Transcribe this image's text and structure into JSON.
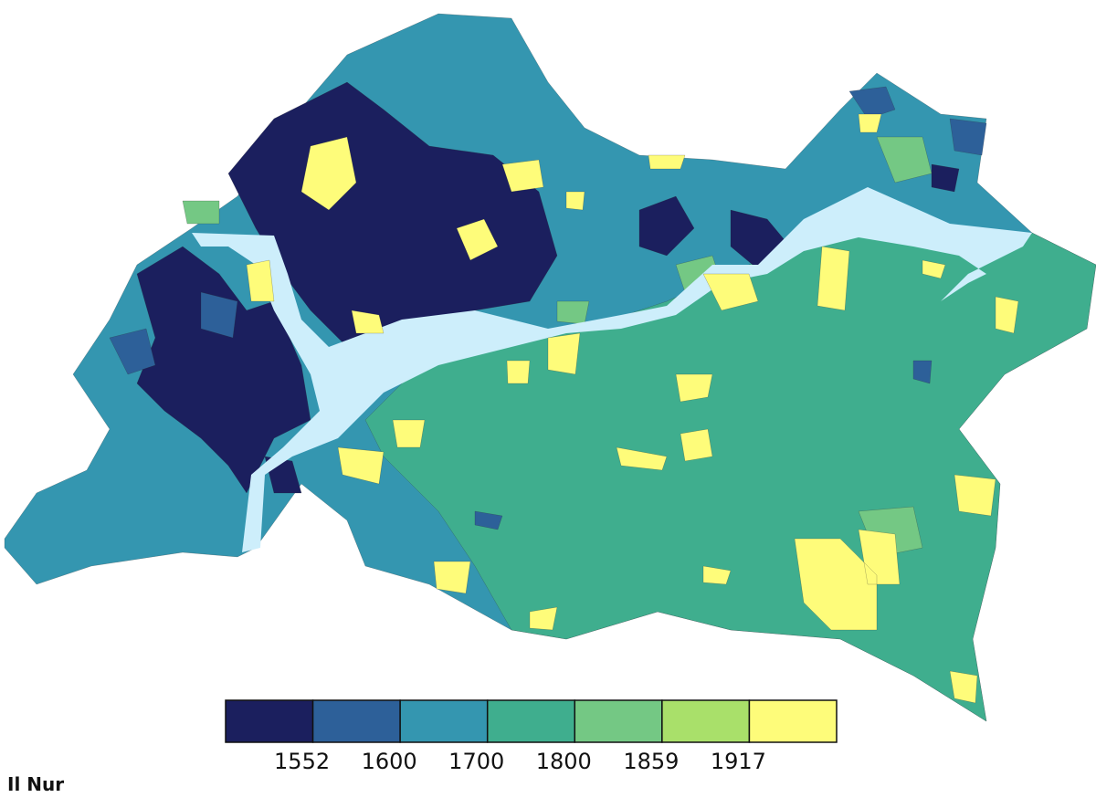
{
  "title": "Il Nur",
  "legend": {
    "colors": [
      "#1b1f5e",
      "#2d6099",
      "#3496b0",
      "#3fae8e",
      "#74c884",
      "#a9e06a",
      "#fefc7a"
    ],
    "ticks": [
      1552,
      1600,
      1700,
      1800,
      1859,
      1917
    ]
  }
}
